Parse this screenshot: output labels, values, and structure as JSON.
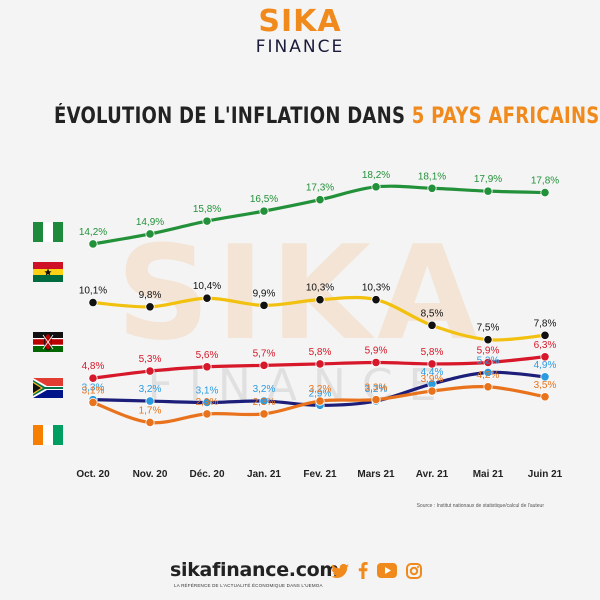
{
  "brand": {
    "name": "SIKA",
    "sub": "FINANCE"
  },
  "title": {
    "part1": "ÉVOLUTION DE L'INFLATION DANS ",
    "part2": "5 PAYS AFRICAINS"
  },
  "watermark": {
    "big": "SIKA",
    "small": "FINANCE"
  },
  "source": "Source : Institut nationaux de statistique/calcul de l'auteur",
  "footer": {
    "site": "sikafinance.com",
    "tagline": "LA RÉFÉRENCE DE L'ACTUALITÉ ÉCONOMIQUE DANS L'UEMOA"
  },
  "social": [
    "twitter-icon",
    "facebook-icon",
    "youtube-icon",
    "instagram-icon"
  ],
  "colors": {
    "accent": "#f08a1c",
    "dark": "#1a1a3a"
  },
  "chart_data": {
    "type": "line",
    "categories": [
      "Oct. 20",
      "Nov. 20",
      "Déc. 20",
      "Jan. 21",
      "Fev. 21",
      "Mars 21",
      "Avr. 21",
      "Mai 21",
      "Juin 21"
    ],
    "series": [
      {
        "flag": "nigeria-flag",
        "color": "#23913a",
        "marker": "#23913a",
        "labelColor": "#23913a",
        "values": [
          14.2,
          14.9,
          15.8,
          16.5,
          17.3,
          18.2,
          18.1,
          17.9,
          17.8
        ],
        "labels": [
          "14,2%",
          "14,9%",
          "15,8%",
          "16,5%",
          "17,3%",
          "18,2%",
          "18,1%",
          "17,9%",
          "17,8%"
        ]
      },
      {
        "flag": "ghana-flag",
        "color": "#f2c10f",
        "marker": "#111111",
        "labelColor": "#111111",
        "values": [
          10.1,
          9.8,
          10.4,
          9.9,
          10.3,
          10.3,
          8.5,
          7.5,
          7.8
        ],
        "labels": [
          "10,1%",
          "9,8%",
          "10,4%",
          "9,9%",
          "10,3%",
          "10,3%",
          "8,5%",
          "7,5%",
          "7,8%"
        ]
      },
      {
        "flag": "kenya-flag",
        "color": "#d7182a",
        "marker": "#d7182a",
        "labelColor": "#d7182a",
        "values": [
          4.8,
          5.3,
          5.6,
          5.7,
          5.8,
          5.9,
          5.8,
          5.9,
          6.3
        ],
        "labels": [
          "4,8%",
          "5,3%",
          "5,6%",
          "5,7%",
          "5,8%",
          "5,9%",
          "5,8%",
          "5,9%",
          "6,3%"
        ]
      },
      {
        "flag": "south-africa-flag",
        "color": "#1d1d7a",
        "marker": "#2b9be0",
        "labelColor": "#2b9be0",
        "values": [
          3.3,
          3.2,
          3.1,
          3.2,
          2.9,
          3.2,
          4.4,
          5.2,
          4.9
        ],
        "labels": [
          "3,3%",
          "3,2%",
          "3,1%",
          "3,2%",
          "2,9%",
          "3,2%",
          "4,4%",
          "5,2%",
          "4,9%"
        ]
      },
      {
        "flag": "cote-divoire-flag",
        "color": "#e8731c",
        "marker": "#e8731c",
        "labelColor": "#e8731c",
        "values": [
          3.1,
          1.7,
          2.3,
          2.3,
          3.2,
          3.3,
          3.9,
          4.2,
          3.5
        ],
        "labels": [
          "3,1%",
          "1,7%",
          "2,3%",
          "2,3%",
          "3,2%",
          "3,3%",
          "3,9%",
          "4,2%",
          "3,5%"
        ]
      }
    ]
  }
}
